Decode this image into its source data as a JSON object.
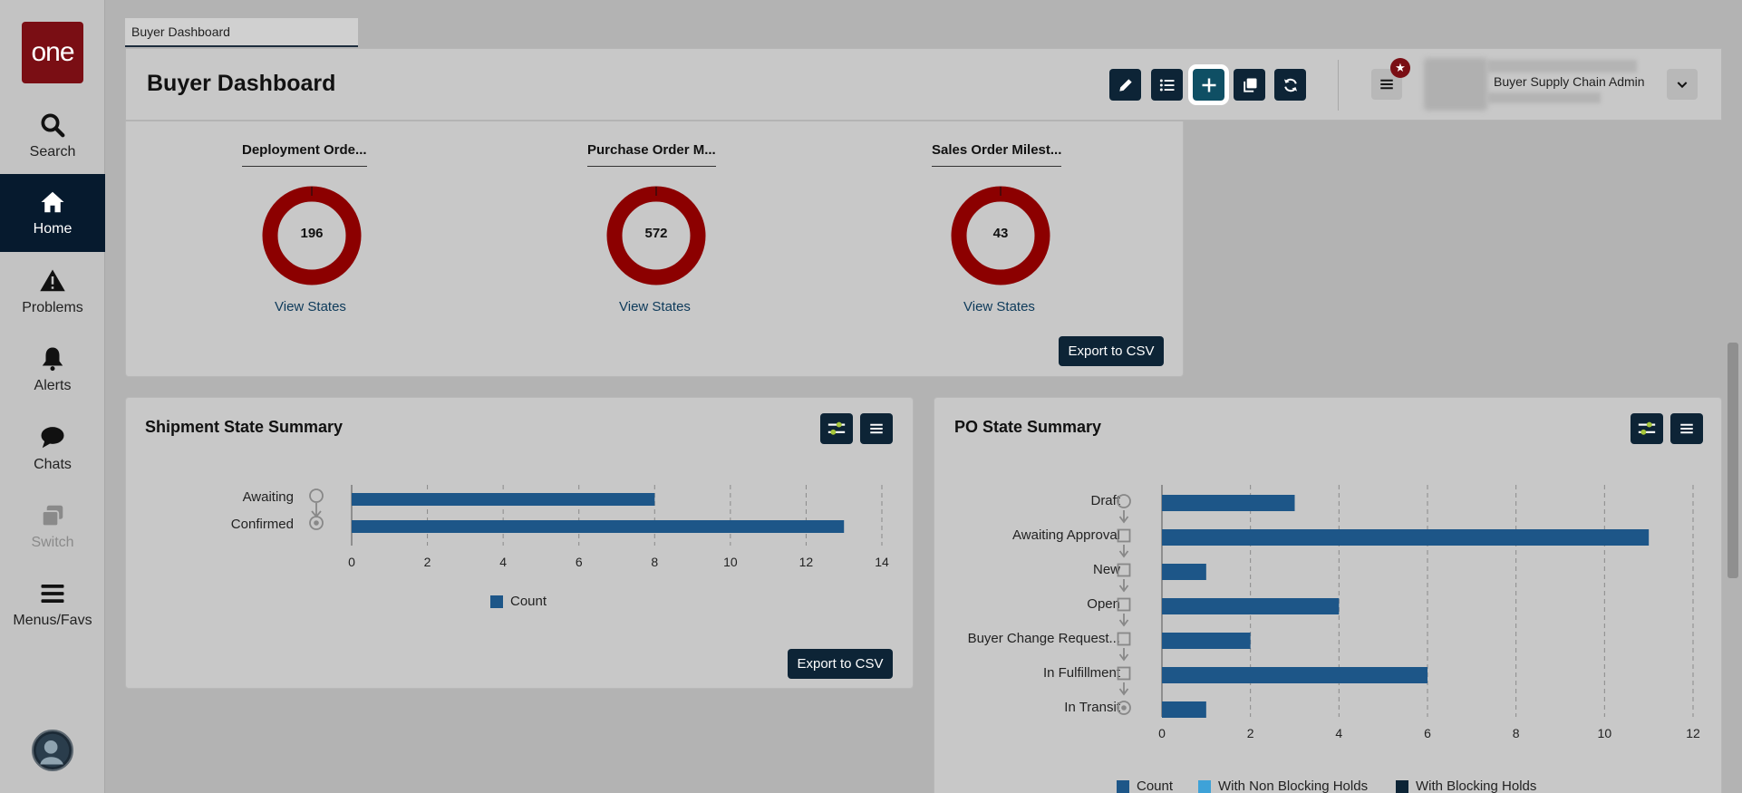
{
  "sidebar": {
    "logo_text": "one",
    "items": [
      {
        "label": "Search",
        "icon": "search-icon"
      },
      {
        "label": "Home",
        "icon": "home-icon"
      },
      {
        "label": "Problems",
        "icon": "warning-icon"
      },
      {
        "label": "Alerts",
        "icon": "bell-icon"
      },
      {
        "label": "Chats",
        "icon": "chat-icon"
      },
      {
        "label": "Switch",
        "icon": "switch-icon"
      },
      {
        "label": "Menus/Favs",
        "icon": "menu-icon"
      }
    ]
  },
  "tab": {
    "label": "Buyer Dashboard"
  },
  "header": {
    "title": "Buyer Dashboard",
    "user_name": "Buyer Supply Chain Admin",
    "toolbar_icons": [
      "edit-icon",
      "list-icon",
      "add-icon",
      "copy-icon",
      "refresh-icon"
    ]
  },
  "milestones": {
    "export_label": "Export to CSV",
    "widgets": [
      {
        "title": "Deployment Orde...",
        "value": "196",
        "link": "View States"
      },
      {
        "title": "Purchase Order M...",
        "value": "572",
        "link": "View States"
      },
      {
        "title": "Sales Order Milest...",
        "value": "43",
        "link": "View States"
      }
    ]
  },
  "shipment": {
    "title": "Shipment State Summary",
    "export_label": "Export to CSV",
    "chart_data": {
      "type": "bar",
      "orientation": "horizontal",
      "categories": [
        "Awaiting",
        "Confirmed"
      ],
      "series": [
        {
          "name": "Count",
          "values": [
            8,
            13
          ]
        }
      ],
      "xlim": [
        0,
        14
      ],
      "xticks": [
        "0",
        "2",
        "4",
        "6",
        "8",
        "10",
        "12",
        "14"
      ],
      "legend": "bottom",
      "colors": {
        "Count": "#1d5688"
      }
    }
  },
  "po": {
    "title": "PO State Summary",
    "chart_data": {
      "type": "bar",
      "orientation": "horizontal",
      "categories": [
        "Draft",
        "Awaiting Approval",
        "New",
        "Open",
        "Buyer Change Request...",
        "In Fulfillment",
        "In Transit"
      ],
      "series": [
        {
          "name": "Count",
          "values": [
            3,
            11,
            1,
            4,
            2,
            6,
            1
          ]
        },
        {
          "name": "With Non Blocking Holds",
          "values": [
            0,
            0,
            0,
            0,
            0,
            0,
            0
          ]
        },
        {
          "name": "With Blocking Holds",
          "values": [
            0,
            0,
            0,
            0,
            0,
            0,
            0
          ]
        }
      ],
      "xlim": [
        0,
        12
      ],
      "xticks": [
        "0",
        "2",
        "4",
        "6",
        "8",
        "10",
        "12"
      ],
      "legend": "bottom",
      "colors": {
        "Count": "#1d5688",
        "With Non Blocking Holds": "#3ea2d8",
        "With Blocking Holds": "#0d2436"
      }
    }
  }
}
